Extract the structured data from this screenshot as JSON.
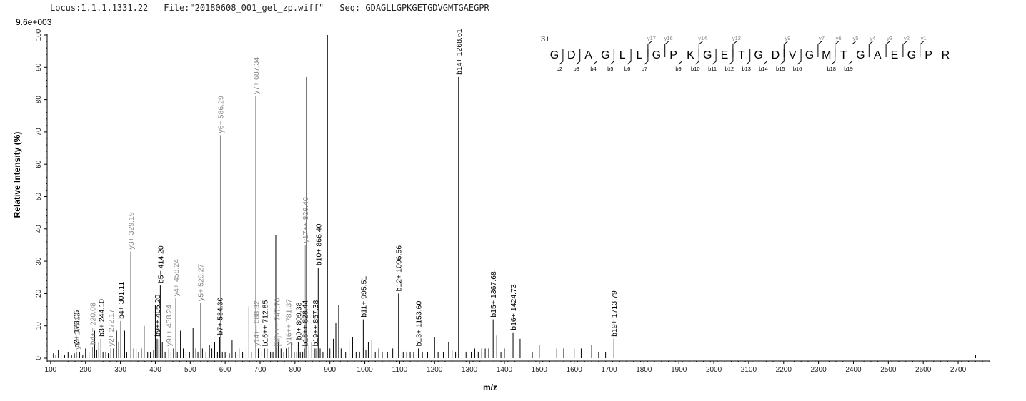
{
  "header": {
    "locus": "Locus:1.1.1.1331.22",
    "file": "File:\"20180608_001_gel_zp.wiff\"",
    "seq": "Seq: GDAGLLGPKGETGDVGMTGAEGPR"
  },
  "scale_max": "9.6e+003",
  "colors": {
    "b_ion": "#000000",
    "y_ion": "#888888",
    "other": "#000000"
  },
  "chart_data": {
    "type": "bar",
    "xlabel": "m/z",
    "ylabel": "Relative   Intensity (%)",
    "xlim": [
      90,
      2790
    ],
    "ylim": [
      0,
      100
    ],
    "x_ticks": [
      100,
      200,
      300,
      400,
      500,
      600,
      700,
      800,
      900,
      1000,
      1100,
      1200,
      1300,
      1400,
      1500,
      1600,
      1700,
      1800,
      1900,
      2000,
      2100,
      2200,
      2300,
      2400,
      2500,
      2600,
      2700
    ],
    "y_ticks": [
      0,
      10,
      20,
      30,
      40,
      50,
      60,
      70,
      80,
      90,
      100
    ],
    "labeled_peaks": [
      {
        "mz": 173.05,
        "y": 2.5,
        "label": "b2+ 173.05",
        "kind": "b"
      },
      {
        "mz": 175.12,
        "y": 2.0,
        "label": "y1+ 175.12",
        "kind": "y"
      },
      {
        "mz": 220.08,
        "y": 3.5,
        "label": "b4++ 220.08",
        "kind": "y"
      },
      {
        "mz": 244.1,
        "y": 6.0,
        "label": "b3+ 244.10",
        "kind": "b"
      },
      {
        "mz": 272.17,
        "y": 3.0,
        "label": "y2+ 272.17",
        "kind": "y"
      },
      {
        "mz": 301.11,
        "y": 11.5,
        "label": "b4+ 301.11",
        "kind": "b"
      },
      {
        "mz": 329.19,
        "y": 33.0,
        "label": "y3+ 329.19",
        "kind": "y"
      },
      {
        "mz": 405.2,
        "y": 6.0,
        "label": "b9++ 405.20",
        "kind": "b"
      },
      {
        "mz": 414.2,
        "y": 22.5,
        "label": "b5+ 414.20",
        "kind": "b"
      },
      {
        "mz": 438.24,
        "y": 3.0,
        "label": "y9++ 438.24",
        "kind": "y"
      },
      {
        "mz": 458.24,
        "y": 18.5,
        "label": "y4+ 458.24",
        "kind": "y"
      },
      {
        "mz": 529.27,
        "y": 17.0,
        "label": "y5+ 529.27",
        "kind": "y"
      },
      {
        "mz": 584.3,
        "y": 6.5,
        "label": "b7+ 584.30",
        "kind": "b"
      },
      {
        "mz": 586.29,
        "y": 69.0,
        "label": "y6+ 586.29",
        "kind": "y"
      },
      {
        "mz": 687.34,
        "y": 81.0,
        "label": "y7+ 687.34",
        "kind": "y"
      },
      {
        "mz": 688.32,
        "y": 3.0,
        "label": "y14++ 688.32",
        "kind": "y"
      },
      {
        "mz": 712.85,
        "y": 3.0,
        "label": "b16++ 712.85",
        "kind": "b"
      },
      {
        "mz": 747.7,
        "y": 3.0,
        "label": "[M]+++ 747.70",
        "kind": "y"
      },
      {
        "mz": 781.37,
        "y": 3.5,
        "label": "y16++ 781.37",
        "kind": "y"
      },
      {
        "mz": 809.38,
        "y": 5.0,
        "label": "b9+ 809.38",
        "kind": "b"
      },
      {
        "mz": 828.44,
        "y": 3.0,
        "label": "b18++ 828.44",
        "kind": "b"
      },
      {
        "mz": 829.4,
        "y": 35.0,
        "label": "y17++ 829.40",
        "kind": "y"
      },
      {
        "mz": 857.38,
        "y": 3.0,
        "label": "b19++ 857.38",
        "kind": "b"
      },
      {
        "mz": 866.4,
        "y": 28.0,
        "label": "b10+ 866.40",
        "kind": "b"
      },
      {
        "mz": 995.51,
        "y": 12.0,
        "label": "b11+ 995.51",
        "kind": "b"
      },
      {
        "mz": 1096.56,
        "y": 20.0,
        "label": "b12+ 1096.56",
        "kind": "b"
      },
      {
        "mz": 1153.6,
        "y": 3.0,
        "label": "b13+ 1153.60",
        "kind": "b"
      },
      {
        "mz": 1268.61,
        "y": 87.0,
        "label": "b14+ 1268.61",
        "kind": "b"
      },
      {
        "mz": 1367.68,
        "y": 12.0,
        "label": "b15+ 1367.68",
        "kind": "b"
      },
      {
        "mz": 1424.73,
        "y": 8.0,
        "label": "b16+ 1424.73",
        "kind": "b"
      },
      {
        "mz": 1713.79,
        "y": 6.0,
        "label": "b19+ 1713.79",
        "kind": "b"
      }
    ],
    "other_peaks": [
      [
        108,
        1.5
      ],
      [
        115,
        1
      ],
      [
        122,
        2.5
      ],
      [
        130,
        1.5
      ],
      [
        140,
        1
      ],
      [
        150,
        2
      ],
      [
        160,
        1
      ],
      [
        168,
        1.5
      ],
      [
        183,
        2
      ],
      [
        192,
        1
      ],
      [
        200,
        3
      ],
      [
        210,
        2
      ],
      [
        226,
        8.5
      ],
      [
        232,
        2.5
      ],
      [
        238,
        5
      ],
      [
        250,
        2
      ],
      [
        258,
        2
      ],
      [
        265,
        1.5
      ],
      [
        280,
        3
      ],
      [
        289,
        8.5
      ],
      [
        295,
        5
      ],
      [
        312,
        8.5
      ],
      [
        318,
        2
      ],
      [
        338,
        3
      ],
      [
        345,
        3
      ],
      [
        352,
        2
      ],
      [
        360,
        3
      ],
      [
        368,
        10
      ],
      [
        378,
        2
      ],
      [
        386,
        2
      ],
      [
        395,
        2.5
      ],
      [
        400,
        16.5
      ],
      [
        410,
        5.5
      ],
      [
        420,
        5
      ],
      [
        428,
        2
      ],
      [
        445,
        2
      ],
      [
        452,
        3
      ],
      [
        463,
        2
      ],
      [
        472,
        8.5
      ],
      [
        480,
        3
      ],
      [
        488,
        2
      ],
      [
        498,
        2
      ],
      [
        508,
        9.5
      ],
      [
        516,
        3
      ],
      [
        522,
        2
      ],
      [
        535,
        3
      ],
      [
        545,
        2
      ],
      [
        555,
        4
      ],
      [
        562,
        3
      ],
      [
        570,
        5
      ],
      [
        578,
        2
      ],
      [
        592,
        2
      ],
      [
        600,
        2
      ],
      [
        612,
        1.5
      ],
      [
        620,
        5.5
      ],
      [
        630,
        2
      ],
      [
        640,
        3
      ],
      [
        650,
        2
      ],
      [
        660,
        3
      ],
      [
        668,
        16
      ],
      [
        675,
        2
      ],
      [
        695,
        3
      ],
      [
        705,
        2
      ],
      [
        720,
        3
      ],
      [
        730,
        2
      ],
      [
        737,
        2
      ],
      [
        745,
        38
      ],
      [
        752,
        5
      ],
      [
        760,
        3
      ],
      [
        768,
        2
      ],
      [
        775,
        3
      ],
      [
        790,
        5
      ],
      [
        798,
        2
      ],
      [
        805,
        2
      ],
      [
        815,
        2
      ],
      [
        822,
        2
      ],
      [
        833,
        87
      ],
      [
        840,
        4
      ],
      [
        848,
        5
      ],
      [
        862,
        3
      ],
      [
        872,
        3
      ],
      [
        880,
        2
      ],
      [
        893,
        100
      ],
      [
        900,
        3
      ],
      [
        910,
        6
      ],
      [
        917,
        11
      ],
      [
        925,
        16.5
      ],
      [
        932,
        3
      ],
      [
        945,
        2
      ],
      [
        955,
        6
      ],
      [
        965,
        6.5
      ],
      [
        975,
        2
      ],
      [
        985,
        2
      ],
      [
        1003,
        2.5
      ],
      [
        1010,
        5
      ],
      [
        1020,
        5.5
      ],
      [
        1030,
        2
      ],
      [
        1040,
        3
      ],
      [
        1050,
        2
      ],
      [
        1065,
        2
      ],
      [
        1080,
        3
      ],
      [
        1110,
        2
      ],
      [
        1120,
        2
      ],
      [
        1130,
        2
      ],
      [
        1140,
        2
      ],
      [
        1165,
        2
      ],
      [
        1180,
        2
      ],
      [
        1200,
        6.5
      ],
      [
        1210,
        2
      ],
      [
        1225,
        2
      ],
      [
        1240,
        5
      ],
      [
        1250,
        2.5
      ],
      [
        1260,
        2
      ],
      [
        1290,
        2
      ],
      [
        1305,
        2
      ],
      [
        1315,
        3
      ],
      [
        1325,
        2
      ],
      [
        1335,
        3
      ],
      [
        1345,
        3
      ],
      [
        1355,
        3
      ],
      [
        1378,
        7
      ],
      [
        1390,
        2
      ],
      [
        1400,
        3
      ],
      [
        1445,
        6
      ],
      [
        1480,
        2
      ],
      [
        1500,
        4
      ],
      [
        1550,
        3
      ],
      [
        1570,
        3
      ],
      [
        1600,
        3
      ],
      [
        1620,
        3
      ],
      [
        1650,
        4
      ],
      [
        1670,
        2
      ],
      [
        1690,
        2
      ],
      [
        2750,
        1
      ]
    ]
  },
  "sequence": {
    "charge": "3+",
    "residues": [
      "G",
      "D",
      "A",
      "G",
      "L",
      "L",
      "G",
      "P",
      "K",
      "G",
      "E",
      "T",
      "G",
      "D",
      "V",
      "G",
      "M",
      "T",
      "G",
      "A",
      "E",
      "G",
      "P",
      "R"
    ],
    "b_ions": [
      {
        "after": 1,
        "label": "b2"
      },
      {
        "after": 2,
        "label": "b3"
      },
      {
        "after": 3,
        "label": "b4"
      },
      {
        "after": 4,
        "label": "b5"
      },
      {
        "after": 5,
        "label": "b6"
      },
      {
        "after": 6,
        "label": "b7"
      },
      {
        "after": 8,
        "label": "b9"
      },
      {
        "after": 9,
        "label": "b10"
      },
      {
        "after": 10,
        "label": "b11"
      },
      {
        "after": 11,
        "label": "b12"
      },
      {
        "after": 12,
        "label": "b13"
      },
      {
        "after": 13,
        "label": "b14"
      },
      {
        "after": 14,
        "label": "b15"
      },
      {
        "after": 15,
        "label": "b16"
      },
      {
        "after": 17,
        "label": "b18"
      },
      {
        "after": 18,
        "label": "b19"
      }
    ],
    "y_ions": [
      {
        "after": 6,
        "label": "y17"
      },
      {
        "after": 7,
        "label": "y16"
      },
      {
        "after": 9,
        "label": "y14"
      },
      {
        "after": 11,
        "label": "y12"
      },
      {
        "after": 14,
        "label": "y9"
      },
      {
        "after": 16,
        "label": "y7"
      },
      {
        "after": 17,
        "label": "y6"
      },
      {
        "after": 18,
        "label": "y5"
      },
      {
        "after": 19,
        "label": "y4"
      },
      {
        "after": 20,
        "label": "y3"
      },
      {
        "after": 21,
        "label": "y2"
      },
      {
        "after": 22,
        "label": "y1"
      }
    ]
  }
}
